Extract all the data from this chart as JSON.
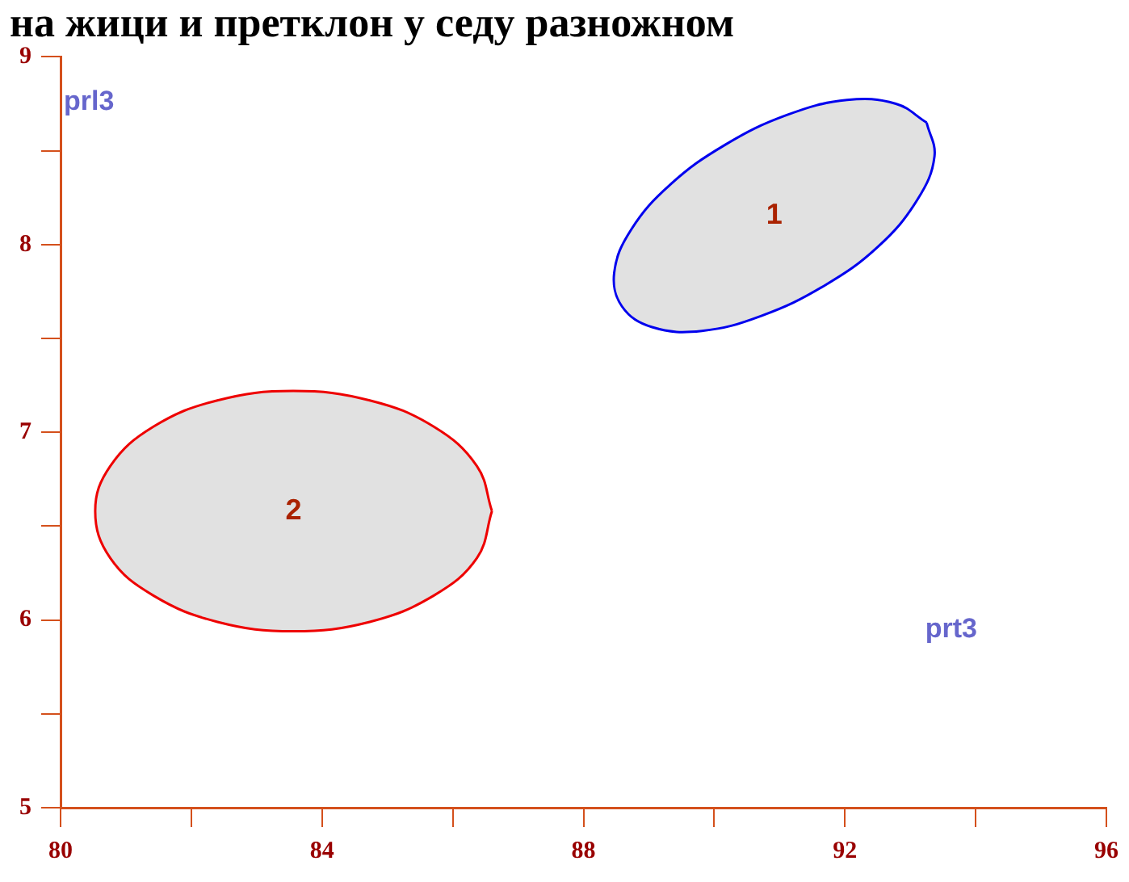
{
  "chart_data": {
    "type": "area",
    "title": "на жици и претклон у седу разножном",
    "xlabel": "prt3",
    "ylabel": "prl3",
    "series": [
      {
        "name": "1",
        "color": "#0000ee",
        "x": [
          93.25,
          93.37,
          93.11,
          92.51,
          91.68,
          90.72,
          89.81,
          89.05,
          88.59,
          88.47,
          88.73,
          89.33,
          90.16,
          91.11,
          92.03,
          92.78,
          93.25
        ],
        "values": [
          8.65,
          8.47,
          8.24,
          7.99,
          7.78,
          7.62,
          7.54,
          7.56,
          7.67,
          7.85,
          8.08,
          8.32,
          8.53,
          8.69,
          8.77,
          8.75,
          8.65
        ]
      },
      {
        "name": "2",
        "color": "#ee0000",
        "x": [
          86.6,
          86.37,
          85.71,
          84.73,
          83.56,
          82.4,
          81.42,
          80.76,
          80.53,
          80.76,
          81.42,
          82.4,
          83.56,
          84.73,
          85.71,
          86.37,
          86.6
        ],
        "values": [
          6.58,
          6.82,
          7.03,
          7.17,
          7.22,
          7.17,
          7.03,
          6.82,
          6.58,
          6.33,
          6.13,
          5.99,
          5.94,
          5.99,
          6.13,
          6.33,
          6.58
        ]
      }
    ],
    "xlim": [
      80,
      96
    ],
    "xticks": [
      80,
      {
        "value": 82,
        "label": null
      },
      84,
      {
        "value": 86,
        "label": null
      },
      88,
      {
        "value": 90,
        "label": null
      },
      92,
      {
        "value": 94,
        "label": null
      },
      96
    ],
    "ylim": [
      5,
      9
    ],
    "yticks": [
      5,
      {
        "value": 5.5,
        "label": null
      },
      6,
      {
        "value": 6.5,
        "label": null
      },
      7,
      {
        "value": 7.5,
        "label": null
      },
      8,
      {
        "value": 8.5,
        "label": null
      },
      9
    ],
    "grid": false,
    "legend": false,
    "marker": "none",
    "line_style": "solid"
  }
}
